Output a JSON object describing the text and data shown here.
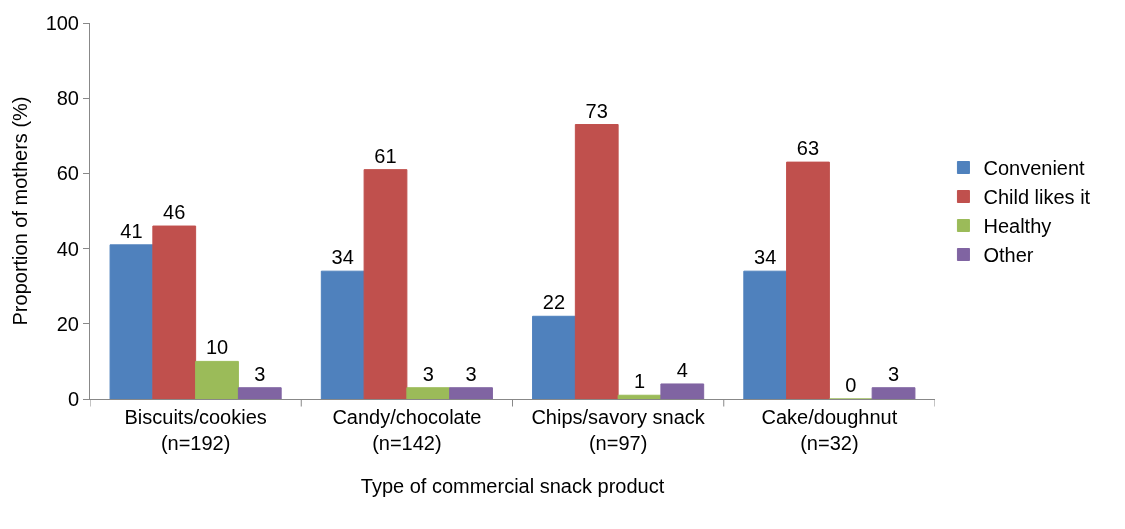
{
  "chart_data": {
    "type": "bar",
    "xlabel": "Type of commercial snack product",
    "ylabel": "Proportion of mothers (%)",
    "categories": [
      "Biscuits/cookies\n(n=192)",
      "Candy/chocolate\n(n=142)",
      "Chips/savory snack\n(n=97)",
      "Cake/doughnut\n(n=32)"
    ],
    "series": [
      {
        "name": "Convenient",
        "color": "#4f81bd",
        "values": [
          41,
          34,
          22,
          34
        ]
      },
      {
        "name": "Child likes it",
        "color": "#c0504d",
        "values": [
          46,
          61,
          73,
          63
        ]
      },
      {
        "name": "Healthy",
        "color": "#9bbb59",
        "values": [
          10,
          3,
          1,
          0
        ]
      },
      {
        "name": "Other",
        "color": "#8064a2",
        "values": [
          3,
          3,
          4,
          3
        ]
      }
    ],
    "ylim": [
      0,
      100
    ],
    "yticks": [
      0,
      20,
      40,
      60,
      80,
      100
    ],
    "grid": false,
    "legend": "right",
    "data_labels": true
  }
}
